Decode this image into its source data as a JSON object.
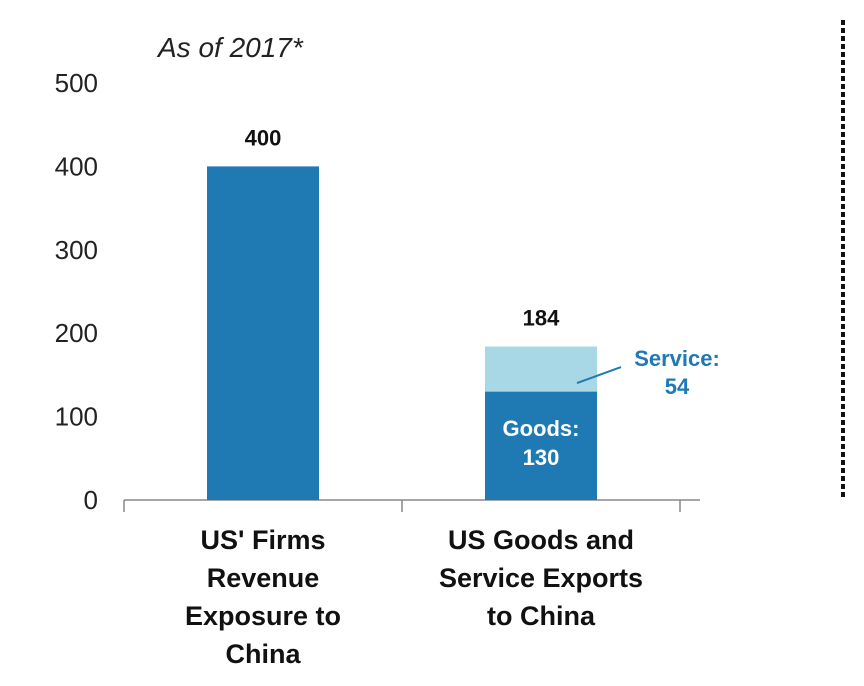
{
  "colors": {
    "primary": "#1f7ab3",
    "service": "#a8d8e6",
    "axis": "#888888",
    "text": "#111111"
  },
  "chart_data": {
    "type": "bar",
    "subtitle": "As of 2017*",
    "ylim": [
      0,
      500
    ],
    "yticks": [
      "0",
      "100",
      "200",
      "300",
      "400",
      "500"
    ],
    "categories": [
      [
        "US' Firms",
        "Revenue",
        "Exposure to",
        "China"
      ],
      [
        "US Goods and",
        "Service Exports",
        "to China"
      ]
    ],
    "bars": [
      {
        "value": 400,
        "total_label": "400",
        "segments": [
          {
            "value": 400
          }
        ]
      },
      {
        "value": 184,
        "total_label": "184",
        "segments": [
          {
            "name": "Goods",
            "value": 130,
            "label_lines": [
              "Goods:",
              "130"
            ]
          },
          {
            "name": "Service",
            "value": 54,
            "label_lines": [
              "Service:",
              "54"
            ]
          }
        ]
      }
    ],
    "divider": "dotted-vertical-right",
    "grid": false,
    "legend": "none"
  }
}
